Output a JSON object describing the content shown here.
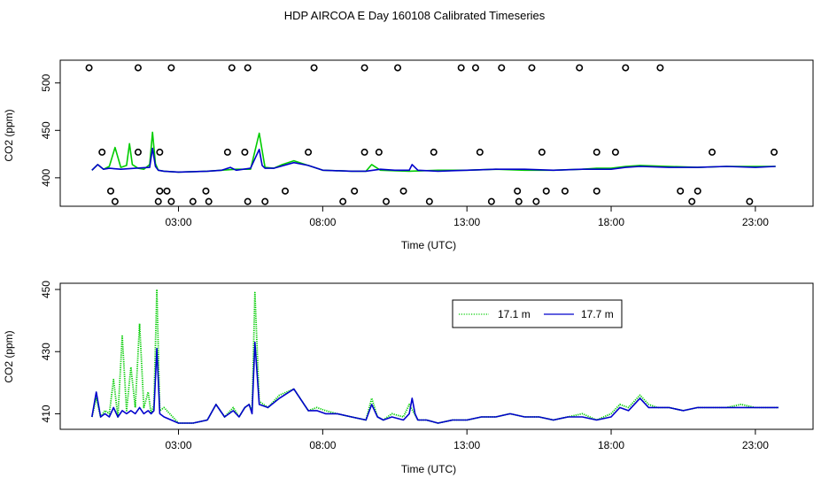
{
  "title": "HDP AIRCOA E  Day 160108  Calibrated Timeseries",
  "colors": {
    "green": "#00cc00",
    "blue": "#0000cc",
    "frame": "#000000"
  },
  "chart_data": [
    {
      "type": "line+scatter",
      "xlabel": "Time (UTC)",
      "ylabel": "CO2 (ppm)",
      "xlim": [
        -1.1,
        25.0
      ],
      "ylim": [
        370,
        524
      ],
      "xticks": [
        3,
        8,
        13,
        18,
        23
      ],
      "xtick_labels": [
        "03:00",
        "08:00",
        "13:00",
        "18:00",
        "23:00"
      ],
      "yticks": [
        400,
        450,
        500
      ],
      "ytick_labels": [
        "400",
        "450",
        "500"
      ],
      "grid": false,
      "series": [
        {
          "color": "green",
          "x": [
            0,
            0.2,
            0.4,
            0.6,
            0.8,
            1,
            1.2,
            1.3,
            1.4,
            1.6,
            1.8,
            2,
            2.1,
            2.2,
            2.3,
            2.5,
            3,
            4,
            4.5,
            5,
            5.5,
            5.8,
            6,
            6.3,
            6.6,
            7,
            8,
            9,
            9.5,
            9.7,
            10,
            11,
            12,
            13,
            14,
            15,
            16,
            17,
            17.5,
            18,
            18.5,
            19,
            20,
            21,
            22,
            23,
            23.7
          ],
          "y": [
            408,
            414,
            409,
            412,
            432,
            411,
            413,
            436,
            414,
            410,
            409,
            414,
            448,
            415,
            408,
            407,
            406,
            407,
            408,
            409,
            409,
            447,
            411,
            410,
            414,
            418,
            408,
            407,
            407,
            414,
            408,
            407,
            408,
            408,
            409,
            408,
            408,
            409,
            410,
            410,
            412,
            413,
            412,
            411,
            412,
            412,
            412
          ]
        },
        {
          "color": "blue",
          "x": [
            0,
            0.2,
            0.4,
            0.6,
            1,
            1.5,
            2,
            2.1,
            2.2,
            2.3,
            2.5,
            3,
            4,
            4.5,
            4.8,
            5,
            5.5,
            5.8,
            5.9,
            6,
            6.3,
            7,
            7.5,
            8,
            9,
            9.5,
            10,
            10.5,
            11,
            11.1,
            11.3,
            12,
            13,
            14,
            15,
            16,
            17,
            18,
            18.5,
            19,
            20,
            21,
            22,
            23,
            23.7
          ],
          "y": [
            408,
            414,
            409,
            410,
            409,
            410,
            411,
            431,
            412,
            408,
            407,
            406,
            407,
            408,
            411,
            408,
            410,
            430,
            413,
            410,
            410,
            416,
            413,
            408,
            407,
            407,
            409,
            408,
            408,
            414,
            408,
            407,
            408,
            409,
            409,
            408,
            409,
            409,
            411,
            412,
            411,
            411,
            412,
            411,
            412
          ]
        }
      ],
      "markers": {
        "symbol": "open-circle",
        "top_y": 516,
        "mid_y": 427,
        "low_y": 386,
        "bot_y": 375,
        "top_x": [
          -0.1,
          1.6,
          2.75,
          4.85,
          5.4,
          7.7,
          9.45,
          10.6,
          12.8,
          13.3,
          14.2,
          15.25,
          16.9,
          18.5,
          19.7
        ],
        "mid_x": [
          0.35,
          1.6,
          2.35,
          4.7,
          5.3,
          7.5,
          9.45,
          9.95,
          11.85,
          13.45,
          15.6,
          17.5,
          18.15,
          21.5,
          23.65
        ],
        "low_x": [
          0.65,
          2.35,
          2.6,
          3.95,
          6.7,
          9.1,
          10.8,
          14.75,
          15.75,
          16.4,
          17.5,
          20.4,
          21.0
        ],
        "bot_x": [
          0.8,
          2.3,
          2.75,
          3.5,
          4.05,
          5.4,
          6.0,
          8.7,
          10.2,
          11.7,
          13.85,
          14.8,
          15.4,
          20.8,
          22.8
        ]
      }
    },
    {
      "type": "line",
      "xlabel": "Time (UTC)",
      "ylabel": "CO2 (ppm)",
      "xlim": [
        -1.1,
        25.0
      ],
      "ylim": [
        405,
        452
      ],
      "xticks": [
        3,
        8,
        13,
        18,
        23
      ],
      "xtick_labels": [
        "03:00",
        "08:00",
        "13:00",
        "18:00",
        "23:00"
      ],
      "yticks": [
        410,
        430,
        450
      ],
      "ytick_labels": [
        "410",
        "430",
        "450"
      ],
      "grid": false,
      "legend_position": "top-right",
      "series": [
        {
          "name": "17.1 m",
          "color": "green",
          "style": "dotted",
          "x": [
            0,
            0.15,
            0.3,
            0.45,
            0.6,
            0.75,
            0.9,
            1.05,
            1.2,
            1.35,
            1.5,
            1.65,
            1.8,
            1.95,
            2.05,
            2.15,
            2.25,
            2.35,
            2.5,
            3,
            3.5,
            4,
            4.3,
            4.6,
            4.9,
            5.1,
            5.3,
            5.45,
            5.55,
            5.65,
            5.8,
            6.1,
            6.5,
            7,
            7.5,
            7.8,
            8.1,
            8.5,
            9,
            9.5,
            9.7,
            9.9,
            10.1,
            10.4,
            10.8,
            11,
            11.3,
            11.6,
            12,
            12.5,
            13,
            13.5,
            14,
            14.5,
            15,
            15.5,
            16,
            16.5,
            17,
            17.5,
            18,
            18.3,
            18.6,
            19,
            19.3,
            19.6,
            20,
            20.5,
            21,
            21.5,
            22,
            22.5,
            23,
            23.5,
            23.8
          ],
          "y": [
            409,
            415,
            409,
            411,
            410,
            421,
            409,
            435,
            411,
            425,
            412,
            439,
            412,
            417,
            410,
            413,
            450,
            411,
            412,
            407,
            407,
            408,
            413,
            409,
            412,
            409,
            412,
            413,
            411,
            449,
            414,
            412,
            416,
            418,
            411,
            412,
            411,
            410,
            409,
            408,
            415,
            409,
            408,
            410,
            409,
            413,
            408,
            408,
            407,
            408,
            408,
            409,
            409,
            410,
            409,
            409,
            408,
            409,
            410,
            408,
            410,
            413,
            412,
            416,
            413,
            412,
            412,
            411,
            412,
            412,
            412,
            413,
            412,
            412,
            412
          ]
        },
        {
          "name": "17.7 m",
          "color": "blue",
          "style": "solid",
          "x": [
            0,
            0.15,
            0.3,
            0.45,
            0.6,
            0.75,
            0.9,
            1.05,
            1.2,
            1.35,
            1.5,
            1.65,
            1.8,
            1.95,
            2.05,
            2.15,
            2.25,
            2.35,
            2.5,
            3,
            3.5,
            4,
            4.3,
            4.6,
            4.9,
            5.1,
            5.3,
            5.45,
            5.55,
            5.65,
            5.8,
            6.1,
            6.5,
            7,
            7.5,
            7.8,
            8.1,
            8.5,
            9,
            9.5,
            9.7,
            9.9,
            10.1,
            10.4,
            10.8,
            11,
            11.1,
            11.2,
            11.3,
            11.6,
            12,
            12.5,
            13,
            13.5,
            14,
            14.5,
            15,
            15.5,
            16,
            16.5,
            17,
            17.5,
            18,
            18.3,
            18.6,
            19,
            19.3,
            19.6,
            20,
            20.5,
            21,
            21.5,
            22,
            22.5,
            23,
            23.5,
            23.8
          ],
          "y": [
            409,
            417,
            409,
            410,
            409,
            412,
            409,
            411,
            410,
            411,
            410,
            412,
            410,
            411,
            410,
            411,
            431,
            410,
            409,
            407,
            407,
            408,
            413,
            409,
            411,
            409,
            412,
            413,
            410,
            433,
            413,
            412,
            415,
            418,
            411,
            411,
            410,
            410,
            409,
            408,
            413,
            409,
            408,
            409,
            408,
            410,
            415,
            410,
            408,
            408,
            407,
            408,
            408,
            409,
            409,
            410,
            409,
            409,
            408,
            409,
            409,
            408,
            409,
            412,
            411,
            415,
            412,
            412,
            412,
            411,
            412,
            412,
            412,
            412,
            412,
            412,
            412
          ]
        }
      ]
    }
  ]
}
